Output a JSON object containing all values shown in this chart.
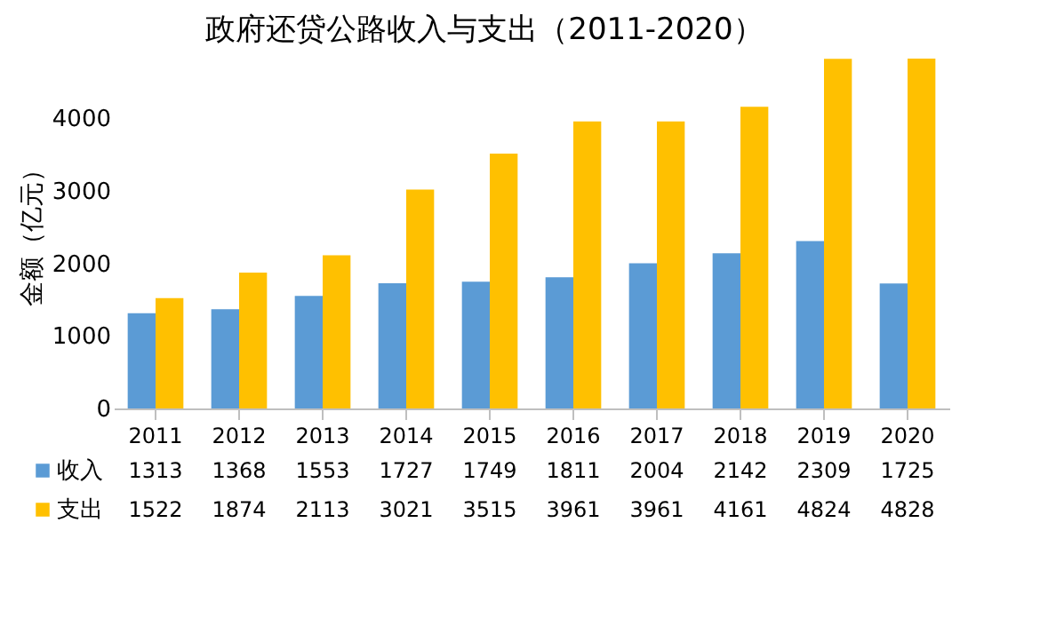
{
  "chart_data": {
    "type": "bar",
    "title": "政府还贷公路收入与支出（2011-2020）",
    "ylabel": "金额（亿元）",
    "categories": [
      "2011",
      "2012",
      "2013",
      "2014",
      "2015",
      "2016",
      "2017",
      "2018",
      "2019",
      "2020"
    ],
    "series": [
      {
        "name": "收入",
        "color": "#5b9bd5",
        "values": [
          1313,
          1368,
          1553,
          1727,
          1749,
          1811,
          2004,
          2142,
          2309,
          1725
        ]
      },
      {
        "name": "支出",
        "color": "#ffc000",
        "values": [
          1522,
          1874,
          2113,
          3021,
          3515,
          3961,
          3961,
          4161,
          4824,
          4828
        ]
      }
    ],
    "ylim": [
      0,
      4900
    ],
    "yticks": [
      0,
      1000,
      2000,
      3000,
      4000
    ],
    "grid": false,
    "data_labels": true,
    "legend": "bottom"
  }
}
